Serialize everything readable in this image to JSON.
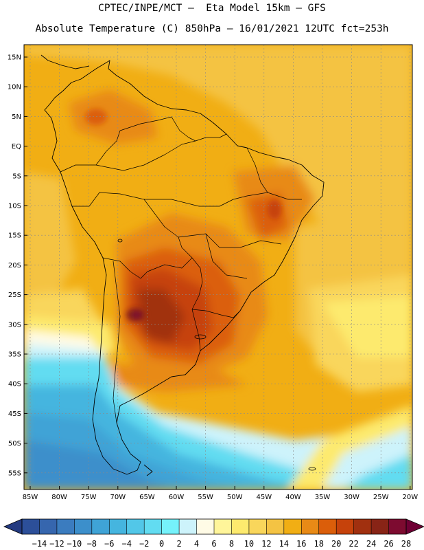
{
  "header": {
    "line1": "CPTEC/INPE/MCT –  Eta Model 15km – GFS",
    "line2": "Absolute Temperature (C) 850hPa – 16/01/2021 12UTC fct=253h"
  },
  "map": {
    "lat_labels": [
      "15N",
      "10N",
      "5N",
      "EQ",
      "5S",
      "10S",
      "15S",
      "20S",
      "25S",
      "30S",
      "35S",
      "40S",
      "45S",
      "50S",
      "55S"
    ],
    "lon_labels": [
      "85W",
      "80W",
      "75W",
      "70W",
      "65W",
      "60W",
      "55W",
      "50W",
      "45W",
      "40W",
      "35W",
      "30W",
      "25W",
      "20W"
    ]
  },
  "colorbar": {
    "tick_labels": [
      "-14",
      "-12",
      "-10",
      "-8",
      "-6",
      "-4",
      "-2",
      "0",
      "2",
      "4",
      "6",
      "8",
      "10",
      "12",
      "14",
      "16",
      "18",
      "20",
      "22",
      "24",
      "26",
      "28"
    ],
    "colors": [
      "#2c4f99",
      "#3666ae",
      "#3b7cbf",
      "#3c8fcb",
      "#3fa3d6",
      "#45b5df",
      "#52c7e8",
      "#62dcf1",
      "#75f2fb",
      "#cdf3fb",
      "#fffbe6",
      "#fff59a",
      "#fdea6e",
      "#f9d65b",
      "#f4c343",
      "#f1ae14",
      "#e88a16",
      "#db5e0a",
      "#c6420b",
      "#a1300f",
      "#882416",
      "#7d0b30"
    ],
    "left_arrow_color": "#233a80",
    "right_arrow_color": "#6e0034"
  }
}
